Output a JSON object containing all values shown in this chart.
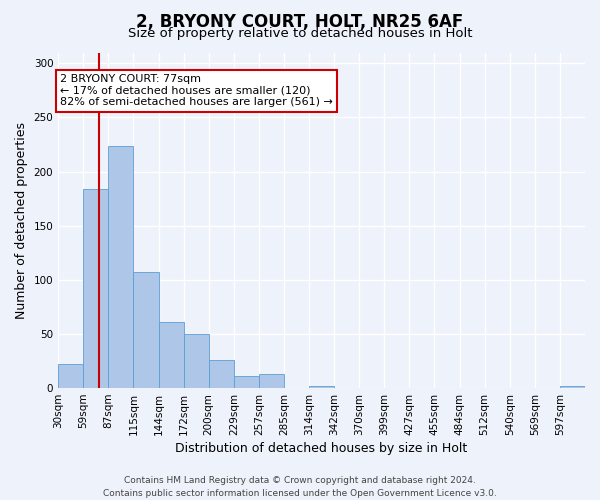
{
  "title": "2, BRYONY COURT, HOLT, NR25 6AF",
  "subtitle": "Size of property relative to detached houses in Holt",
  "xlabel": "Distribution of detached houses by size in Holt",
  "ylabel": "Number of detached properties",
  "footer_lines": [
    "Contains HM Land Registry data © Crown copyright and database right 2024.",
    "Contains public sector information licensed under the Open Government Licence v3.0."
  ],
  "bin_labels": [
    "30sqm",
    "59sqm",
    "87sqm",
    "115sqm",
    "144sqm",
    "172sqm",
    "200sqm",
    "229sqm",
    "257sqm",
    "285sqm",
    "314sqm",
    "342sqm",
    "370sqm",
    "399sqm",
    "427sqm",
    "455sqm",
    "484sqm",
    "512sqm",
    "540sqm",
    "569sqm",
    "597sqm"
  ],
  "bar_heights": [
    22,
    184,
    224,
    107,
    61,
    50,
    26,
    11,
    13,
    0,
    2,
    0,
    0,
    0,
    0,
    0,
    0,
    0,
    0,
    0,
    2
  ],
  "bar_color": "#aec6e8",
  "bar_edge_color": "#5a9fd4",
  "ylim": [
    0,
    310
  ],
  "yticks": [
    0,
    50,
    100,
    150,
    200,
    250,
    300
  ],
  "vline_color": "#cc0000",
  "background_color": "#eef2fa",
  "grid_color": "#ffffff",
  "annotation_title": "2 BRYONY COURT: 77sqm",
  "annotation_line1": "← 17% of detached houses are smaller (120)",
  "annotation_line2": "82% of semi-detached houses are larger (561) →",
  "annotation_box_color": "#ffffff",
  "annotation_border_color": "#cc0000",
  "title_fontsize": 12,
  "subtitle_fontsize": 9.5,
  "axis_label_fontsize": 9,
  "tick_fontsize": 7.5,
  "annotation_fontsize": 8,
  "footer_fontsize": 6.5
}
